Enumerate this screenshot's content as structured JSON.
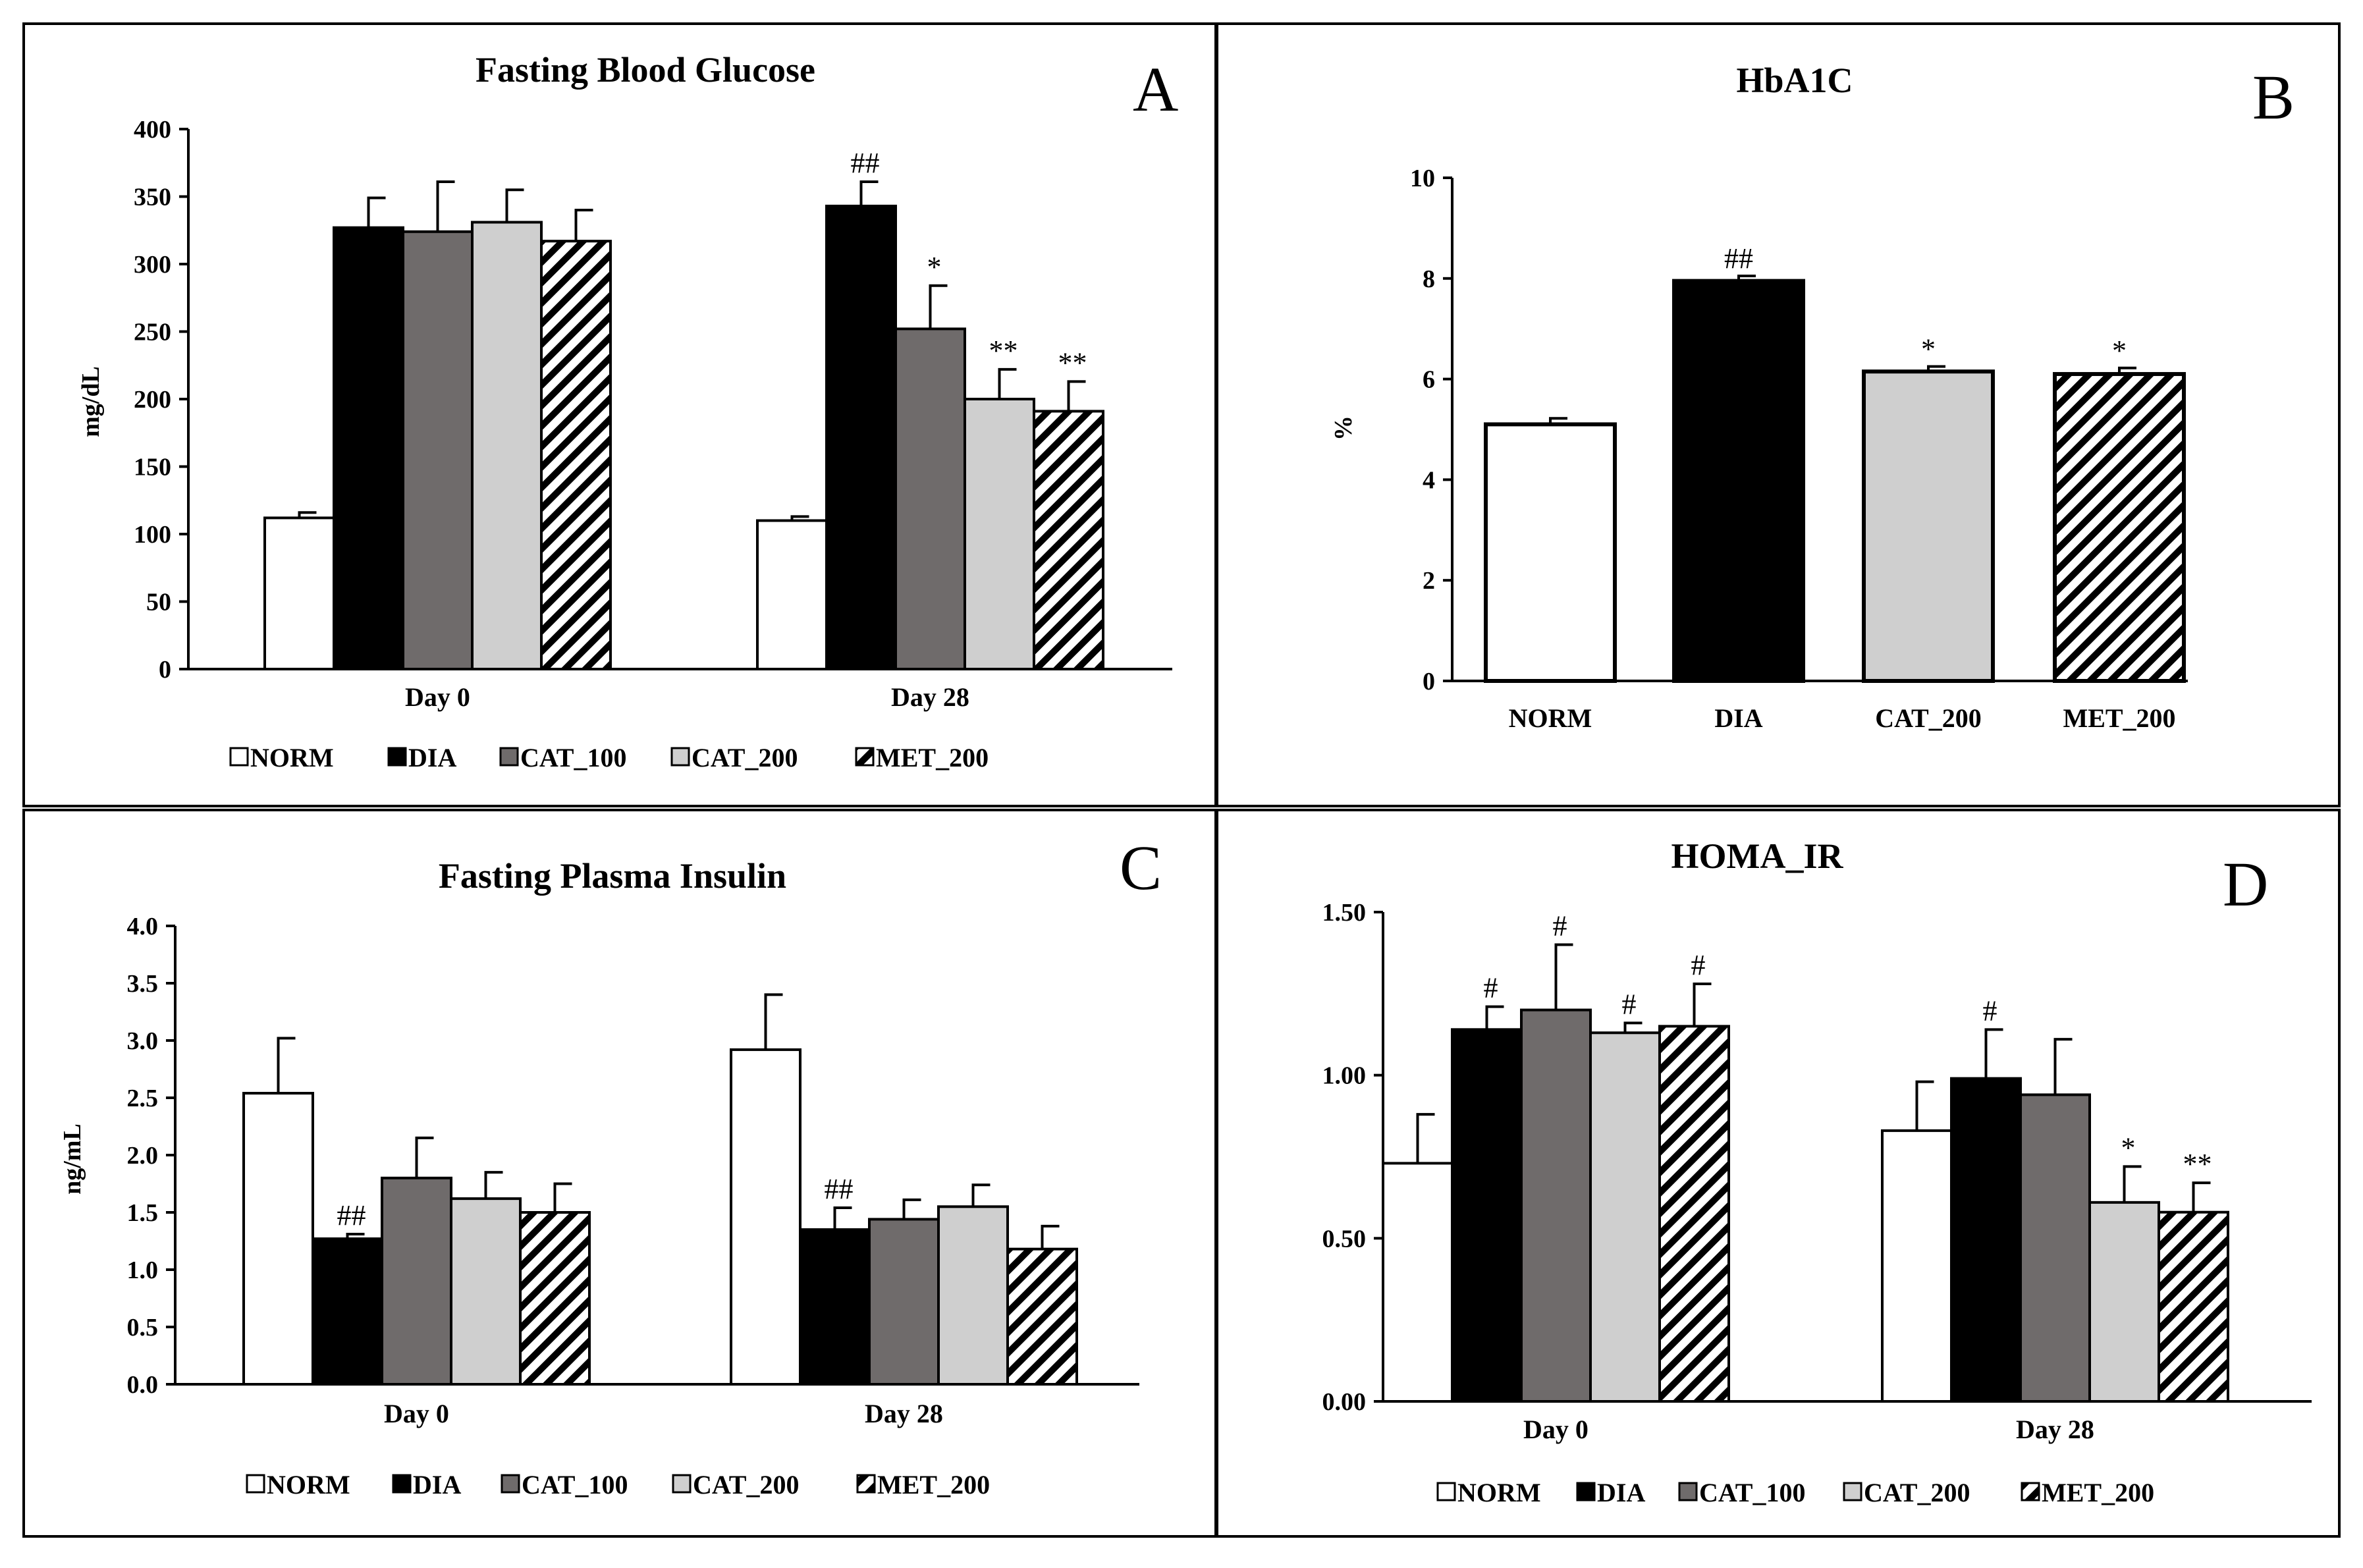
{
  "legend_groups": [
    "NORM",
    "DIA",
    "CAT_100",
    "CAT_200",
    "MET_200"
  ],
  "chart_data": [
    {
      "type": "bar",
      "panel": "A",
      "title": "Fasting Blood Glucose",
      "ylabel": "mg/dL",
      "xlabel": "",
      "ylim": [
        0,
        400
      ],
      "yticks": [
        0,
        50,
        100,
        150,
        200,
        250,
        300,
        350,
        400
      ],
      "ytick_labels": [
        "0",
        "50",
        "100",
        "150",
        "200",
        "250",
        "300",
        "350",
        "400"
      ],
      "categories": [
        "Day 0",
        "Day 28"
      ],
      "series": [
        {
          "name": "NORM",
          "values": [
            112,
            110
          ],
          "errors": [
            4,
            3
          ],
          "annotations": [
            "",
            ""
          ]
        },
        {
          "name": "DIA",
          "values": [
            327,
            343
          ],
          "errors": [
            22,
            18
          ],
          "annotations": [
            "",
            "##"
          ]
        },
        {
          "name": "CAT_100",
          "values": [
            324,
            252
          ],
          "errors": [
            37,
            32
          ],
          "annotations": [
            "",
            "*"
          ]
        },
        {
          "name": "CAT_200",
          "values": [
            331,
            200
          ],
          "errors": [
            24,
            22
          ],
          "annotations": [
            "",
            "**"
          ]
        },
        {
          "name": "MET_200",
          "values": [
            317,
            191
          ],
          "errors": [
            23,
            22
          ],
          "annotations": [
            "",
            "**"
          ]
        }
      ],
      "legend": [
        "NORM",
        "DIA",
        "CAT_100",
        "CAT_200",
        "MET_200"
      ]
    },
    {
      "type": "bar",
      "panel": "B",
      "title": "HbA1C",
      "ylabel": "%",
      "xlabel": "",
      "ylim": [
        0,
        10
      ],
      "yticks": [
        0,
        2,
        4,
        6,
        8,
        10
      ],
      "ytick_labels": [
        "0",
        "2",
        "4",
        "6",
        "8",
        "10"
      ],
      "categories": [
        "NORM",
        "DIA",
        "CAT_200",
        "MET_200"
      ],
      "values": [
        5.1,
        7.95,
        6.15,
        6.1
      ],
      "errors": [
        0.12,
        0.1,
        0.1,
        0.12
      ],
      "annotations": [
        "",
        "##",
        "*",
        "*"
      ]
    },
    {
      "type": "bar",
      "panel": "C",
      "title": "Fasting Plasma Insulin",
      "ylabel": "ng/mL",
      "xlabel": "",
      "ylim": [
        0,
        4.0
      ],
      "yticks": [
        0,
        0.5,
        1.0,
        1.5,
        2.0,
        2.5,
        3.0,
        3.5,
        4.0
      ],
      "ytick_labels": [
        "0.0",
        "0.5",
        "1.0",
        "1.5",
        "2.0",
        "2.5",
        "3.0",
        "3.5",
        "4.0"
      ],
      "categories": [
        "Day 0",
        "Day 28"
      ],
      "series": [
        {
          "name": "NORM",
          "values": [
            2.54,
            2.92
          ],
          "errors": [
            0.48,
            0.48
          ],
          "annotations": [
            "",
            ""
          ]
        },
        {
          "name": "DIA",
          "values": [
            1.27,
            1.35
          ],
          "errors": [
            0.04,
            0.19
          ],
          "annotations": [
            "##",
            "##"
          ]
        },
        {
          "name": "CAT_100",
          "values": [
            1.8,
            1.44
          ],
          "errors": [
            0.35,
            0.17
          ],
          "annotations": [
            "",
            ""
          ]
        },
        {
          "name": "CAT_200",
          "values": [
            1.62,
            1.55
          ],
          "errors": [
            0.23,
            0.19
          ],
          "annotations": [
            "",
            ""
          ]
        },
        {
          "name": "MET_200",
          "values": [
            1.5,
            1.18
          ],
          "errors": [
            0.25,
            0.2
          ],
          "annotations": [
            "",
            ""
          ]
        }
      ],
      "legend": [
        "NORM",
        "DIA",
        "CAT_100",
        "CAT_200",
        "MET_200"
      ]
    },
    {
      "type": "bar",
      "panel": "D",
      "title": "HOMA_IR",
      "ylabel": "",
      "xlabel": "",
      "ylim": [
        0,
        1.5
      ],
      "yticks": [
        0,
        0.5,
        1.0,
        1.5
      ],
      "ytick_labels": [
        "0.00",
        "0.50",
        "1.00",
        "1.50"
      ],
      "categories": [
        "Day 0",
        "Day 28"
      ],
      "series": [
        {
          "name": "NORM",
          "values": [
            0.73,
            0.83
          ],
          "errors": [
            0.15,
            0.15
          ],
          "annotations": [
            "",
            ""
          ]
        },
        {
          "name": "DIA",
          "values": [
            1.14,
            0.99
          ],
          "errors": [
            0.07,
            0.15
          ],
          "annotations": [
            "#",
            "#"
          ]
        },
        {
          "name": "CAT_100",
          "values": [
            1.2,
            0.94
          ],
          "errors": [
            0.2,
            0.17
          ],
          "annotations": [
            "#",
            ""
          ]
        },
        {
          "name": "CAT_200",
          "values": [
            1.13,
            0.61
          ],
          "errors": [
            0.03,
            0.11
          ],
          "annotations": [
            "#",
            "*"
          ]
        },
        {
          "name": "MET_200",
          "values": [
            1.15,
            0.58
          ],
          "errors": [
            0.13,
            0.09
          ],
          "annotations": [
            "#",
            "**"
          ]
        }
      ],
      "legend": [
        "NORM",
        "DIA",
        "CAT_100",
        "CAT_200",
        "MET_200"
      ]
    }
  ]
}
